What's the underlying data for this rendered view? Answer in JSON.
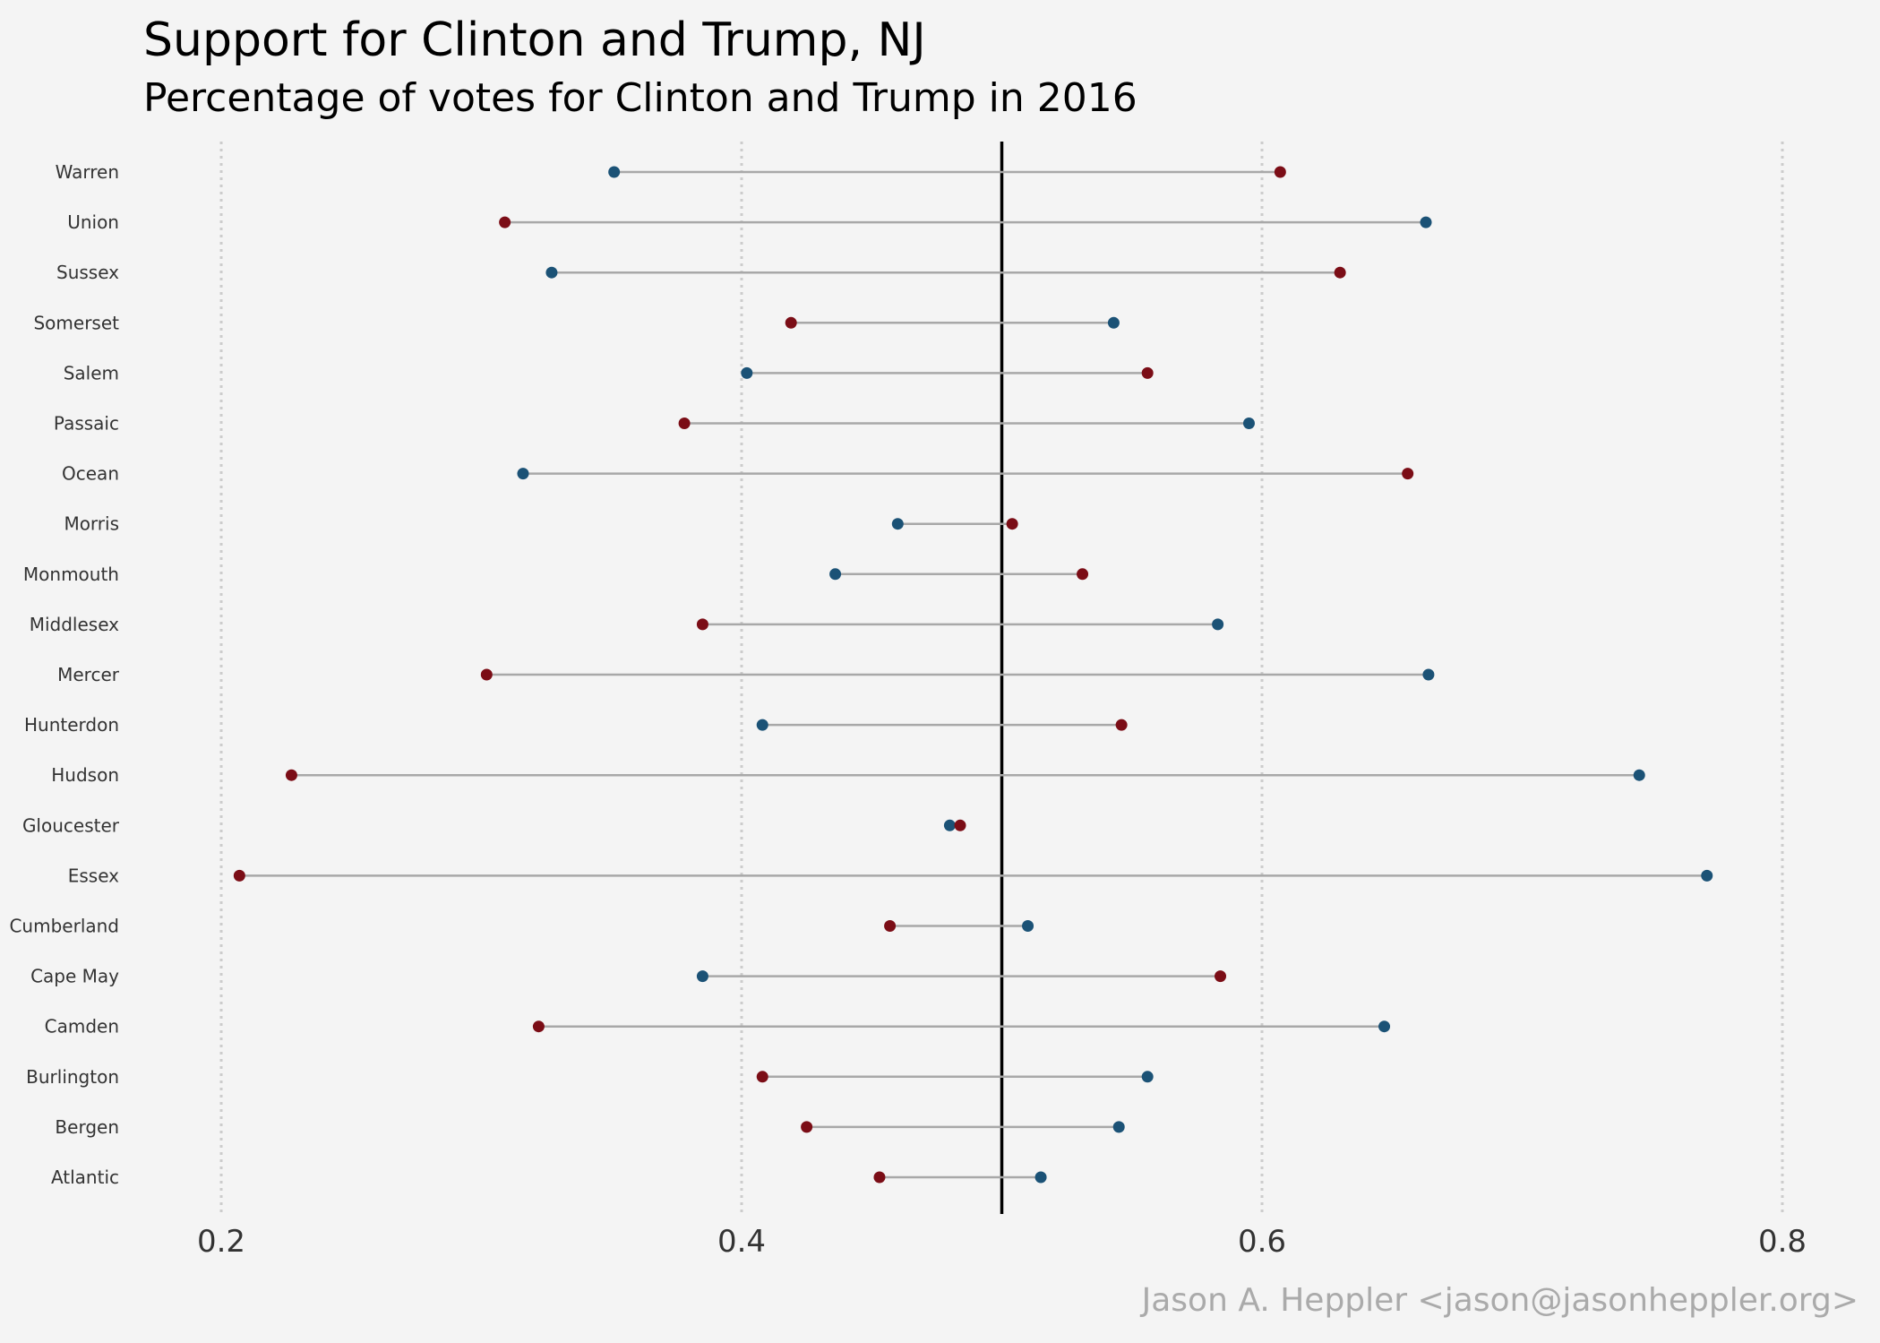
{
  "chart_data": {
    "type": "dumbbell",
    "title": "Support for Clinton and Trump,  NJ",
    "subtitle": "Percentage of votes for Clinton and Trump in 2016",
    "caption": "Jason A. Heppler <jason@jasonheppler.org>",
    "xlim": [
      0.15,
      0.82
    ],
    "xticks": [
      0.2,
      0.4,
      0.6,
      0.8
    ],
    "xtick_labels": [
      "0.2",
      "0.4",
      "0.6",
      "0.8"
    ],
    "reference_line": 0.5,
    "grid": "vertical dotted",
    "colors": {
      "clinton": "#1b5276",
      "trump": "#7b0d16",
      "segment": "#a8a8a8",
      "grid": "#cccccc",
      "reference": "#000000"
    },
    "series": [
      {
        "name": "Clinton",
        "color": "#1b5276"
      },
      {
        "name": "Trump",
        "color": "#7b0d16"
      }
    ],
    "rows": [
      {
        "county": "Warren",
        "clinton": 0.351,
        "trump": 0.607
      },
      {
        "county": "Union",
        "clinton": 0.663,
        "trump": 0.309
      },
      {
        "county": "Sussex",
        "clinton": 0.327,
        "trump": 0.63
      },
      {
        "county": "Somerset",
        "clinton": 0.543,
        "trump": 0.419
      },
      {
        "county": "Salem",
        "clinton": 0.402,
        "trump": 0.556
      },
      {
        "county": "Passaic",
        "clinton": 0.595,
        "trump": 0.378
      },
      {
        "county": "Ocean",
        "clinton": 0.316,
        "trump": 0.656
      },
      {
        "county": "Morris",
        "clinton": 0.46,
        "trump": 0.504
      },
      {
        "county": "Monmouth",
        "clinton": 0.436,
        "trump": 0.531
      },
      {
        "county": "Middlesex",
        "clinton": 0.583,
        "trump": 0.385
      },
      {
        "county": "Mercer",
        "clinton": 0.664,
        "trump": 0.302
      },
      {
        "county": "Hunterdon",
        "clinton": 0.408,
        "trump": 0.546
      },
      {
        "county": "Hudson",
        "clinton": 0.745,
        "trump": 0.227
      },
      {
        "county": "Gloucester",
        "clinton": 0.48,
        "trump": 0.484
      },
      {
        "county": "Essex",
        "clinton": 0.771,
        "trump": 0.207
      },
      {
        "county": "Cumberland",
        "clinton": 0.51,
        "trump": 0.457
      },
      {
        "county": "Cape May",
        "clinton": 0.385,
        "trump": 0.584
      },
      {
        "county": "Camden",
        "clinton": 0.647,
        "trump": 0.322
      },
      {
        "county": "Burlington",
        "clinton": 0.556,
        "trump": 0.408
      },
      {
        "county": "Bergen",
        "clinton": 0.545,
        "trump": 0.425
      },
      {
        "county": "Atlantic",
        "clinton": 0.515,
        "trump": 0.453
      }
    ]
  }
}
